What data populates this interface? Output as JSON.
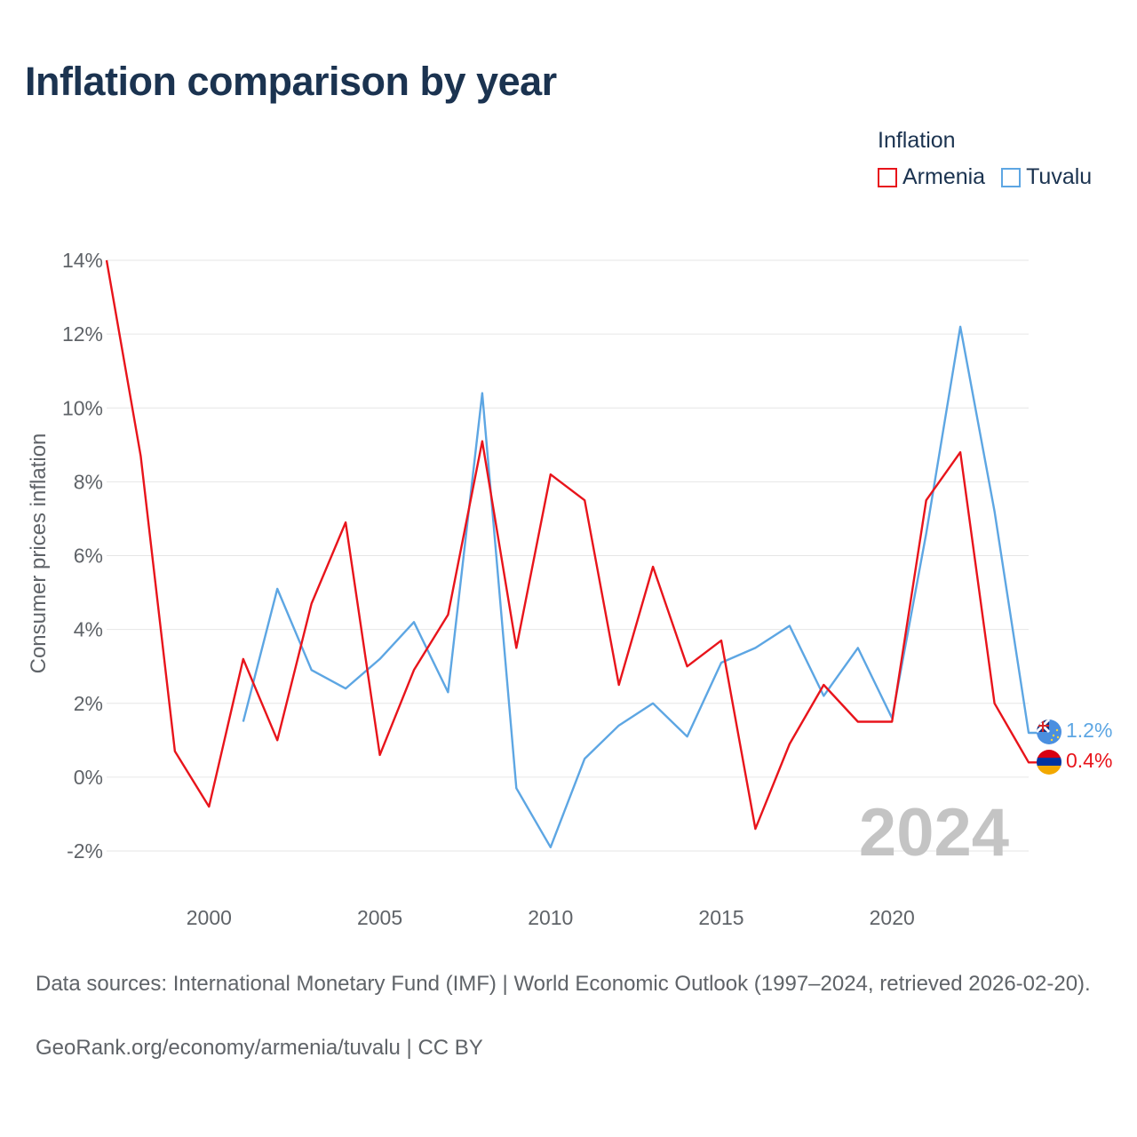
{
  "title": "Inflation comparison by year",
  "legend": {
    "title": "Inflation",
    "items": [
      {
        "label": "Armenia",
        "color": "#e8141b"
      },
      {
        "label": "Tuvalu",
        "color": "#5da6e3"
      }
    ]
  },
  "watermark_year": "2024",
  "source_text": "Data sources: International Monetary Fund (IMF) | World Economic Outlook (1997–2024, retrieved 2026-02-20).",
  "credit_text": "GeoRank.org/economy/armenia/tuvalu | CC BY",
  "chart_data": {
    "type": "line",
    "title": "Inflation comparison by year",
    "xlabel": "",
    "ylabel": "Consumer prices inflation",
    "xlim": [
      1997,
      2024
    ],
    "ylim": [
      -2,
      14
    ],
    "x_ticks": [
      2000,
      2005,
      2010,
      2015,
      2020
    ],
    "x_tick_labels": [
      "2000",
      "2005",
      "2010",
      "2015",
      "2020"
    ],
    "y_ticks": [
      -2,
      0,
      2,
      4,
      6,
      8,
      10,
      12,
      14
    ],
    "y_tick_labels": [
      "-2%",
      "0%",
      "2%",
      "4%",
      "6%",
      "8%",
      "10%",
      "12%",
      "14%"
    ],
    "grid": true,
    "series": [
      {
        "name": "Armenia",
        "color": "#e8141b",
        "end_label": "0.4%",
        "x": [
          1997,
          1998,
          1999,
          2000,
          2001,
          2002,
          2003,
          2004,
          2005,
          2006,
          2007,
          2008,
          2009,
          2010,
          2011,
          2012,
          2013,
          2014,
          2015,
          2016,
          2017,
          2018,
          2019,
          2020,
          2021,
          2022,
          2023,
          2024
        ],
        "values": [
          14.0,
          8.7,
          0.7,
          -0.8,
          3.2,
          1.0,
          4.7,
          6.9,
          0.6,
          2.9,
          4.4,
          9.1,
          3.5,
          8.2,
          7.5,
          2.5,
          5.7,
          3.0,
          3.7,
          -1.4,
          0.9,
          2.5,
          1.5,
          1.5,
          7.5,
          8.8,
          2.0,
          0.4
        ]
      },
      {
        "name": "Tuvalu",
        "color": "#5da6e3",
        "end_label": "1.2%",
        "x": [
          2001,
          2002,
          2003,
          2004,
          2005,
          2006,
          2007,
          2008,
          2009,
          2010,
          2011,
          2012,
          2013,
          2014,
          2015,
          2016,
          2017,
          2018,
          2019,
          2020,
          2021,
          2022,
          2023,
          2024
        ],
        "values": [
          1.5,
          5.1,
          2.9,
          2.4,
          3.2,
          4.2,
          2.3,
          10.4,
          -0.3,
          -1.9,
          0.5,
          1.4,
          2.0,
          1.1,
          3.1,
          3.5,
          4.1,
          2.2,
          3.5,
          1.6,
          6.6,
          12.2,
          7.2,
          1.2
        ]
      }
    ]
  }
}
